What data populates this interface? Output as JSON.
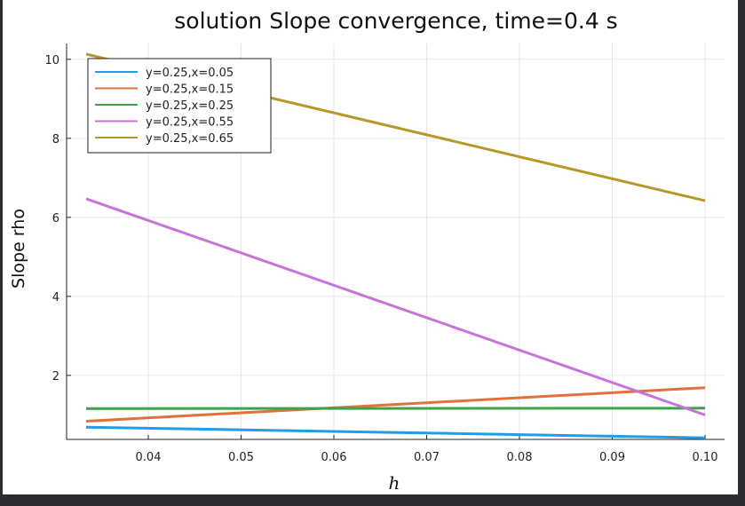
{
  "chart_data": {
    "type": "line",
    "title": "solution Slope convergence, time=0.4 s",
    "xlabel": "h",
    "ylabel": "Slope rho",
    "xlim": [
      0.0333,
      0.1
    ],
    "ylim": [
      0.2,
      10.4
    ],
    "xticks": [
      0.04,
      0.05,
      0.06,
      0.07,
      0.08,
      0.09,
      0.1
    ],
    "xtick_labels": [
      "0.04",
      "0.05",
      "0.06",
      "0.07",
      "0.08",
      "0.09",
      "0.10"
    ],
    "yticks": [
      2,
      4,
      6,
      8,
      10
    ],
    "ytick_labels": [
      "2",
      "4",
      "6",
      "8",
      "10"
    ],
    "grid": true,
    "legend_position": "top-left",
    "series": [
      {
        "name": "y=0.25,x=0.05",
        "color": "#1f9ee8",
        "x": [
          0.0333,
          0.1
        ],
        "y": [
          0.69,
          0.42
        ]
      },
      {
        "name": "y=0.25,x=0.15",
        "color": "#e2703d",
        "x": [
          0.0333,
          0.1
        ],
        "y": [
          0.84,
          1.69
        ]
      },
      {
        "name": "y=0.25,x=0.25",
        "color": "#3fa24a",
        "x": [
          0.0333,
          0.1
        ],
        "y": [
          1.16,
          1.17
        ]
      },
      {
        "name": "y=0.25,x=0.55",
        "color": "#c674d8",
        "x": [
          0.0333,
          0.1
        ],
        "y": [
          6.47,
          1.0
        ]
      },
      {
        "name": "y=0.25,x=0.65",
        "color": "#b8962a",
        "x": [
          0.0333,
          0.1
        ],
        "y": [
          10.13,
          6.42
        ]
      }
    ]
  }
}
